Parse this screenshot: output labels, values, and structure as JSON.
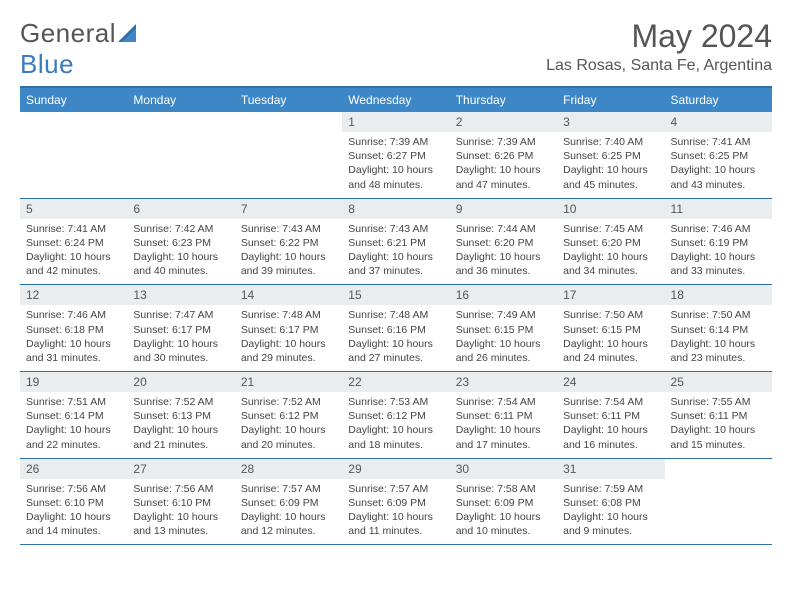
{
  "logo": {
    "text1": "General",
    "text2": "Blue"
  },
  "title": "May 2024",
  "location": "Las Rosas, Santa Fe, Argentina",
  "colors": {
    "header_bg": "#3d87c7",
    "header_text": "#ffffff",
    "rule": "#2f6fa8",
    "daynum_bg": "#e9edf0",
    "text": "#444444",
    "background": "#ffffff",
    "logo_gray": "#555555",
    "logo_blue": "#3a7abd"
  },
  "typography": {
    "title_fontsize": 32,
    "location_fontsize": 16,
    "dayheader_fontsize": 12,
    "cell_fontsize": 10.5,
    "font_family": "Arial"
  },
  "day_headers": [
    "Sunday",
    "Monday",
    "Tuesday",
    "Wednesday",
    "Thursday",
    "Friday",
    "Saturday"
  ],
  "weeks": [
    [
      {
        "num": "",
        "sunrise": "",
        "sunset": "",
        "daylight": ""
      },
      {
        "num": "",
        "sunrise": "",
        "sunset": "",
        "daylight": ""
      },
      {
        "num": "",
        "sunrise": "",
        "sunset": "",
        "daylight": ""
      },
      {
        "num": "1",
        "sunrise": "Sunrise: 7:39 AM",
        "sunset": "Sunset: 6:27 PM",
        "daylight": "Daylight: 10 hours and 48 minutes."
      },
      {
        "num": "2",
        "sunrise": "Sunrise: 7:39 AM",
        "sunset": "Sunset: 6:26 PM",
        "daylight": "Daylight: 10 hours and 47 minutes."
      },
      {
        "num": "3",
        "sunrise": "Sunrise: 7:40 AM",
        "sunset": "Sunset: 6:25 PM",
        "daylight": "Daylight: 10 hours and 45 minutes."
      },
      {
        "num": "4",
        "sunrise": "Sunrise: 7:41 AM",
        "sunset": "Sunset: 6:25 PM",
        "daylight": "Daylight: 10 hours and 43 minutes."
      }
    ],
    [
      {
        "num": "5",
        "sunrise": "Sunrise: 7:41 AM",
        "sunset": "Sunset: 6:24 PM",
        "daylight": "Daylight: 10 hours and 42 minutes."
      },
      {
        "num": "6",
        "sunrise": "Sunrise: 7:42 AM",
        "sunset": "Sunset: 6:23 PM",
        "daylight": "Daylight: 10 hours and 40 minutes."
      },
      {
        "num": "7",
        "sunrise": "Sunrise: 7:43 AM",
        "sunset": "Sunset: 6:22 PM",
        "daylight": "Daylight: 10 hours and 39 minutes."
      },
      {
        "num": "8",
        "sunrise": "Sunrise: 7:43 AM",
        "sunset": "Sunset: 6:21 PM",
        "daylight": "Daylight: 10 hours and 37 minutes."
      },
      {
        "num": "9",
        "sunrise": "Sunrise: 7:44 AM",
        "sunset": "Sunset: 6:20 PM",
        "daylight": "Daylight: 10 hours and 36 minutes."
      },
      {
        "num": "10",
        "sunrise": "Sunrise: 7:45 AM",
        "sunset": "Sunset: 6:20 PM",
        "daylight": "Daylight: 10 hours and 34 minutes."
      },
      {
        "num": "11",
        "sunrise": "Sunrise: 7:46 AM",
        "sunset": "Sunset: 6:19 PM",
        "daylight": "Daylight: 10 hours and 33 minutes."
      }
    ],
    [
      {
        "num": "12",
        "sunrise": "Sunrise: 7:46 AM",
        "sunset": "Sunset: 6:18 PM",
        "daylight": "Daylight: 10 hours and 31 minutes."
      },
      {
        "num": "13",
        "sunrise": "Sunrise: 7:47 AM",
        "sunset": "Sunset: 6:17 PM",
        "daylight": "Daylight: 10 hours and 30 minutes."
      },
      {
        "num": "14",
        "sunrise": "Sunrise: 7:48 AM",
        "sunset": "Sunset: 6:17 PM",
        "daylight": "Daylight: 10 hours and 29 minutes."
      },
      {
        "num": "15",
        "sunrise": "Sunrise: 7:48 AM",
        "sunset": "Sunset: 6:16 PM",
        "daylight": "Daylight: 10 hours and 27 minutes."
      },
      {
        "num": "16",
        "sunrise": "Sunrise: 7:49 AM",
        "sunset": "Sunset: 6:15 PM",
        "daylight": "Daylight: 10 hours and 26 minutes."
      },
      {
        "num": "17",
        "sunrise": "Sunrise: 7:50 AM",
        "sunset": "Sunset: 6:15 PM",
        "daylight": "Daylight: 10 hours and 24 minutes."
      },
      {
        "num": "18",
        "sunrise": "Sunrise: 7:50 AM",
        "sunset": "Sunset: 6:14 PM",
        "daylight": "Daylight: 10 hours and 23 minutes."
      }
    ],
    [
      {
        "num": "19",
        "sunrise": "Sunrise: 7:51 AM",
        "sunset": "Sunset: 6:14 PM",
        "daylight": "Daylight: 10 hours and 22 minutes."
      },
      {
        "num": "20",
        "sunrise": "Sunrise: 7:52 AM",
        "sunset": "Sunset: 6:13 PM",
        "daylight": "Daylight: 10 hours and 21 minutes."
      },
      {
        "num": "21",
        "sunrise": "Sunrise: 7:52 AM",
        "sunset": "Sunset: 6:12 PM",
        "daylight": "Daylight: 10 hours and 20 minutes."
      },
      {
        "num": "22",
        "sunrise": "Sunrise: 7:53 AM",
        "sunset": "Sunset: 6:12 PM",
        "daylight": "Daylight: 10 hours and 18 minutes."
      },
      {
        "num": "23",
        "sunrise": "Sunrise: 7:54 AM",
        "sunset": "Sunset: 6:11 PM",
        "daylight": "Daylight: 10 hours and 17 minutes."
      },
      {
        "num": "24",
        "sunrise": "Sunrise: 7:54 AM",
        "sunset": "Sunset: 6:11 PM",
        "daylight": "Daylight: 10 hours and 16 minutes."
      },
      {
        "num": "25",
        "sunrise": "Sunrise: 7:55 AM",
        "sunset": "Sunset: 6:11 PM",
        "daylight": "Daylight: 10 hours and 15 minutes."
      }
    ],
    [
      {
        "num": "26",
        "sunrise": "Sunrise: 7:56 AM",
        "sunset": "Sunset: 6:10 PM",
        "daylight": "Daylight: 10 hours and 14 minutes."
      },
      {
        "num": "27",
        "sunrise": "Sunrise: 7:56 AM",
        "sunset": "Sunset: 6:10 PM",
        "daylight": "Daylight: 10 hours and 13 minutes."
      },
      {
        "num": "28",
        "sunrise": "Sunrise: 7:57 AM",
        "sunset": "Sunset: 6:09 PM",
        "daylight": "Daylight: 10 hours and 12 minutes."
      },
      {
        "num": "29",
        "sunrise": "Sunrise: 7:57 AM",
        "sunset": "Sunset: 6:09 PM",
        "daylight": "Daylight: 10 hours and 11 minutes."
      },
      {
        "num": "30",
        "sunrise": "Sunrise: 7:58 AM",
        "sunset": "Sunset: 6:09 PM",
        "daylight": "Daylight: 10 hours and 10 minutes."
      },
      {
        "num": "31",
        "sunrise": "Sunrise: 7:59 AM",
        "sunset": "Sunset: 6:08 PM",
        "daylight": "Daylight: 10 hours and 9 minutes."
      },
      {
        "num": "",
        "sunrise": "",
        "sunset": "",
        "daylight": ""
      }
    ]
  ]
}
